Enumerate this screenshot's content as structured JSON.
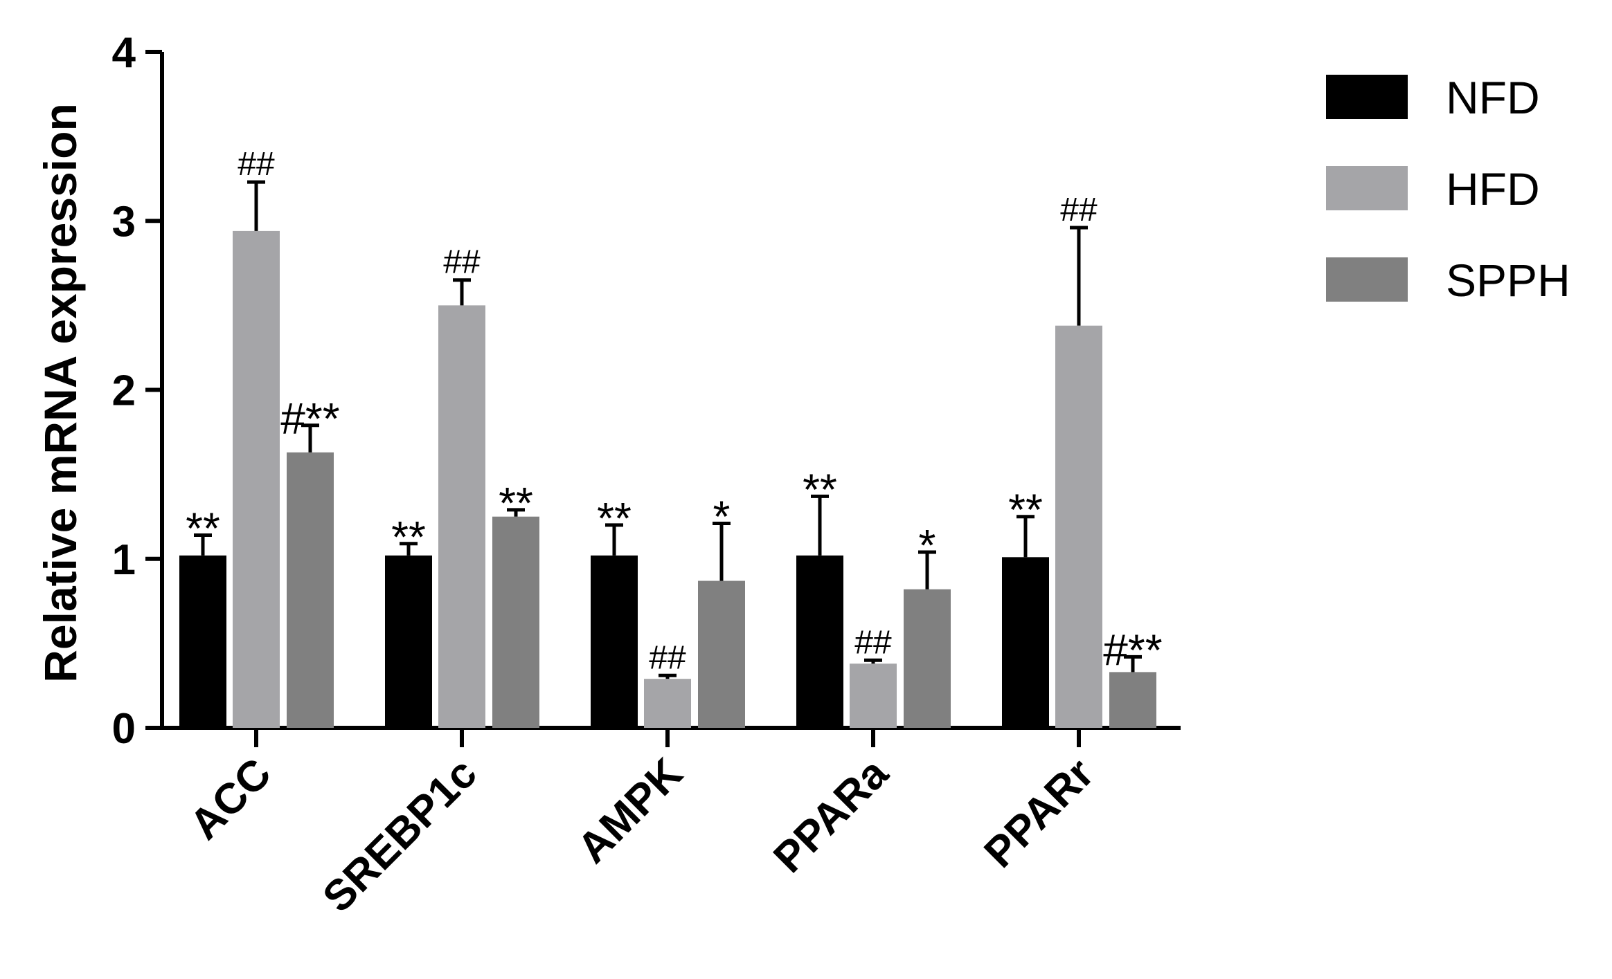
{
  "chart_data": {
    "type": "bar",
    "title": "",
    "xlabel": "",
    "ylabel": "Relative mRNA expression",
    "ylim": [
      0,
      4
    ],
    "yticks": [
      "0",
      "1",
      "2",
      "3",
      "4"
    ],
    "categories": [
      "ACC",
      "SREBP1c",
      "AMPK",
      "PPARa",
      "PPARr"
    ],
    "series": [
      {
        "name": "NFD",
        "color": "#000000",
        "values": [
          1.02,
          1.02,
          1.02,
          1.02,
          1.01
        ],
        "errors": [
          0.12,
          0.07,
          0.18,
          0.35,
          0.24
        ],
        "annotations": [
          "**",
          "**",
          "**",
          "**",
          "**"
        ]
      },
      {
        "name": "HFD",
        "color": "#a5a5a8",
        "values": [
          2.94,
          2.5,
          0.29,
          0.38,
          2.38
        ],
        "errors": [
          0.29,
          0.15,
          0.02,
          0.02,
          0.58
        ],
        "annotations": [
          "##",
          "##",
          "##",
          "##",
          "##"
        ]
      },
      {
        "name": "SPPH",
        "color": "#808080",
        "values": [
          1.63,
          1.25,
          0.87,
          0.82,
          0.33
        ],
        "errors": [
          0.16,
          0.04,
          0.34,
          0.22,
          0.09
        ],
        "annotations": [
          "#**",
          "**",
          "*",
          "*",
          "#**"
        ]
      }
    ],
    "legend_position": "top-right",
    "grid": false
  }
}
